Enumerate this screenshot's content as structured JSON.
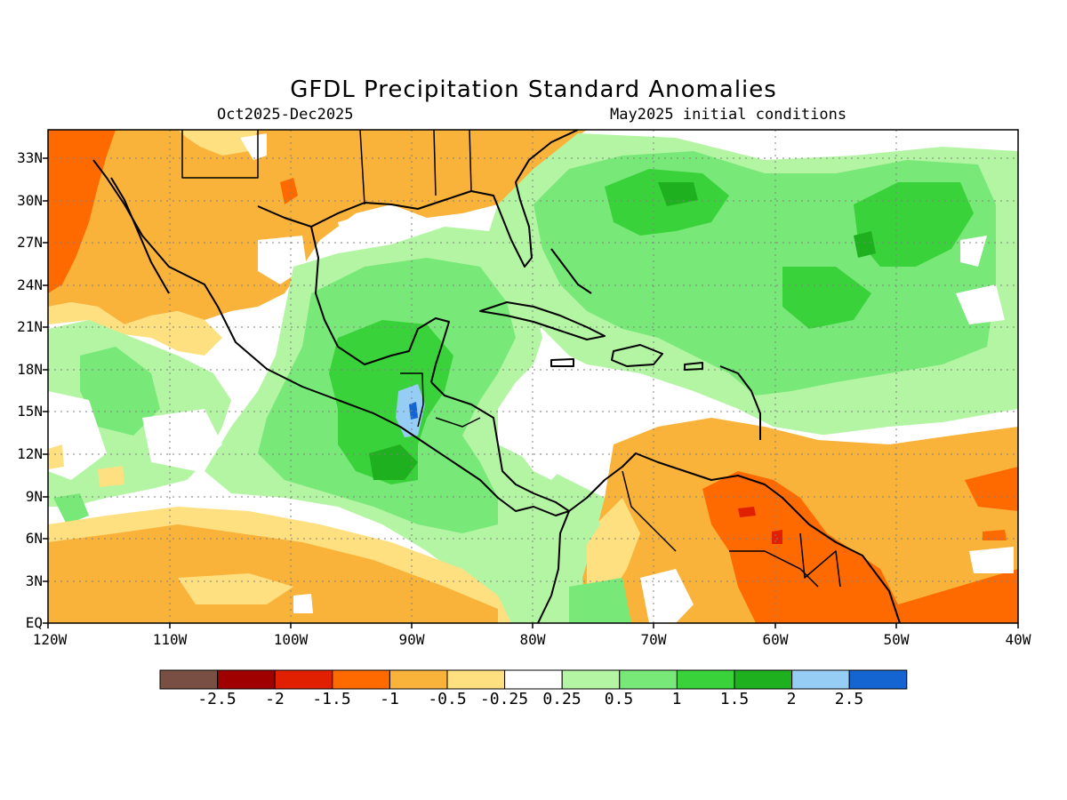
{
  "title": "GFDL Precipitation Standard Anomalies",
  "subtitle_left": "Oct2025-Dec2025",
  "subtitle_right": "May2025 initial conditions",
  "map": {
    "lat_ticks": [
      "33N",
      "30N",
      "27N",
      "24N",
      "21N",
      "18N",
      "15N",
      "12N",
      "9N",
      "6N",
      "3N",
      "EQ"
    ],
    "lon_ticks": [
      "120W",
      "110W",
      "100W",
      "90W",
      "80W",
      "70W",
      "60W",
      "50W",
      "40W"
    ],
    "lat_range": [
      0,
      35
    ],
    "lon_range": [
      -120,
      -40
    ],
    "grid": "dotted"
  },
  "colorbar": {
    "colors": [
      "#7a4f43",
      "#a00000",
      "#e02000",
      "#ff6a00",
      "#f9b23a",
      "#ffe080",
      "#ffffff",
      "#b4f5a4",
      "#78e878",
      "#3ad23a",
      "#1eb01e",
      "#96cdf5",
      "#1464d2"
    ],
    "labels": [
      "-2.5",
      "-2",
      "-1.5",
      "-1",
      "-0.5",
      "-0.25",
      "0.25",
      "0.5",
      "1",
      "1.5",
      "2",
      "2.5"
    ]
  },
  "palette": {
    "dark_orange": "#ff6a00",
    "orange": "#f9b23a",
    "light_orange": "#ffe080",
    "white": "#ffffff",
    "light_green": "#b4f5a4",
    "green": "#78e878",
    "mid_green": "#3ad23a",
    "dark_green": "#1eb01e",
    "light_blue": "#96cdf5",
    "red": "#e02000"
  }
}
